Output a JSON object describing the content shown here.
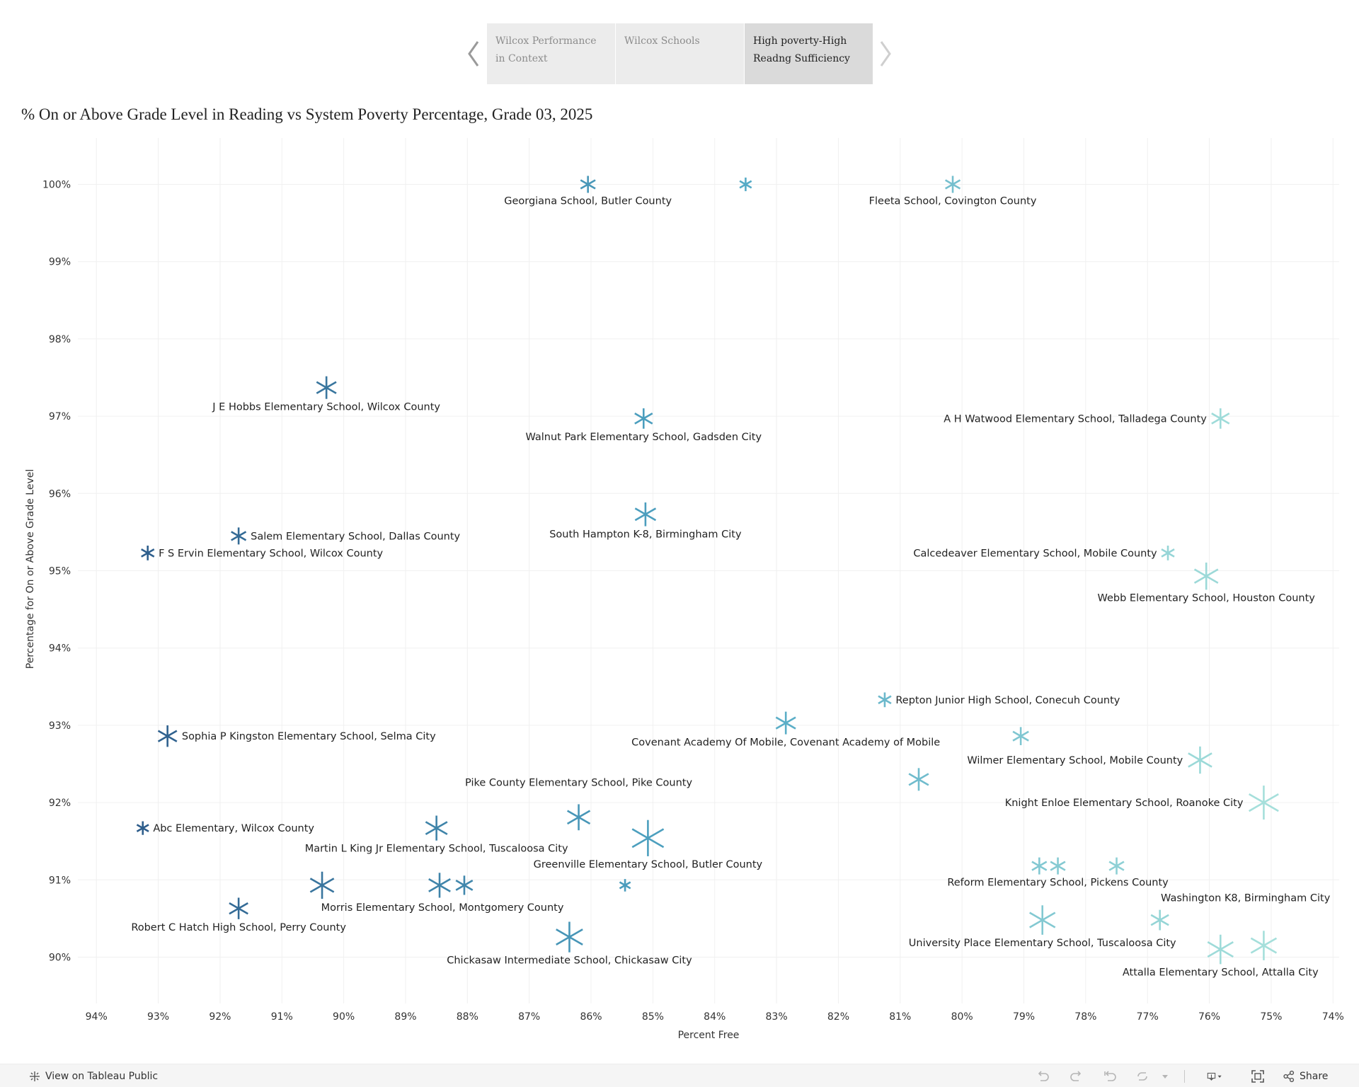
{
  "story": {
    "points": [
      {
        "label": "Wilcox Performance in Context",
        "active": false
      },
      {
        "label": "Wilcox Schools",
        "active": false
      },
      {
        "label": "High poverty-High Readng Sufficiency",
        "active": true
      }
    ]
  },
  "chart_data": {
    "type": "scatter",
    "title": "% On or Above Grade Level in Reading vs System Poverty Percentage, Grade 03, 2025",
    "xlabel": "Percent Free",
    "ylabel": "Percentage for On or Above Grade Level",
    "xlim": [
      94.3,
      73.9
    ],
    "ylim": [
      89.4,
      100.6
    ],
    "x_ticks": [
      94,
      93,
      92,
      91,
      90,
      89,
      88,
      87,
      86,
      85,
      84,
      83,
      82,
      81,
      80,
      79,
      78,
      77,
      76,
      75,
      74
    ],
    "y_ticks": [
      90,
      91,
      92,
      93,
      94,
      95,
      96,
      97,
      98,
      99,
      100
    ],
    "tick_suffix": "%",
    "marker": "asterisk",
    "color_scale": [
      "#2e5e8c",
      "#4fa6c4",
      "#a6e0db"
    ],
    "points": [
      {
        "x": 86.05,
        "y": 100.0,
        "size": 1.5,
        "label": "Georgiana School, Butler County",
        "label_pos": "below"
      },
      {
        "x": 83.5,
        "y": 100.0,
        "size": 1.2,
        "label": "",
        "label_pos": "none"
      },
      {
        "x": 80.15,
        "y": 100.0,
        "size": 1.5,
        "label": "Fleeta School, Covington County",
        "label_pos": "below"
      },
      {
        "x": 90.28,
        "y": 97.37,
        "size": 2.0,
        "label": "J E Hobbs Elementary School, Wilcox County",
        "label_pos": "below"
      },
      {
        "x": 85.15,
        "y": 96.97,
        "size": 1.8,
        "label": "Walnut Park Elementary School, Gadsden City",
        "label_pos": "below"
      },
      {
        "x": 75.82,
        "y": 96.97,
        "size": 1.8,
        "label": "A H Watwood Elementary School, Talladega County",
        "label_pos": "left"
      },
      {
        "x": 85.12,
        "y": 95.73,
        "size": 2.1,
        "label": "South Hampton K-8, Birmingham City",
        "label_pos": "below"
      },
      {
        "x": 91.7,
        "y": 95.45,
        "size": 1.5,
        "label": "Salem Elementary School, Dallas County",
        "label_pos": "right"
      },
      {
        "x": 93.17,
        "y": 95.23,
        "size": 1.3,
        "label": "F S Ervin Elementary School, Wilcox County",
        "label_pos": "right"
      },
      {
        "x": 76.67,
        "y": 95.23,
        "size": 1.3,
        "label": "Calcedeaver Elementary School, Mobile County",
        "label_pos": "left"
      },
      {
        "x": 76.05,
        "y": 94.93,
        "size": 2.4,
        "label": "Webb Elementary School, Houston County",
        "label_pos": "below"
      },
      {
        "x": 81.25,
        "y": 93.33,
        "size": 1.3,
        "label": "Repton Junior High School, Conecuh County",
        "label_pos": "right"
      },
      {
        "x": 82.85,
        "y": 93.03,
        "size": 2.0,
        "label": "Covenant Academy Of Mobile, Covenant Academy of Mobile",
        "label_pos": "below"
      },
      {
        "x": 92.85,
        "y": 92.86,
        "size": 1.9,
        "label": "Sophia P Kingston Elementary School, Selma City",
        "label_pos": "right"
      },
      {
        "x": 79.05,
        "y": 92.86,
        "size": 1.6,
        "label": "",
        "label_pos": "none"
      },
      {
        "x": 76.15,
        "y": 92.55,
        "size": 2.4,
        "label": "Wilmer Elementary School, Mobile County",
        "label_pos": "left"
      },
      {
        "x": 80.7,
        "y": 92.3,
        "size": 2.0,
        "label": "",
        "label_pos": "none"
      },
      {
        "x": 75.12,
        "y": 92.0,
        "size": 3.0,
        "label": "Knight Enloe Elementary School, Roanoke City",
        "label_pos": "left"
      },
      {
        "x": 86.2,
        "y": 91.81,
        "size": 2.3,
        "label": "Pike County Elementary School, Pike County",
        "label_pos": "above"
      },
      {
        "x": 88.5,
        "y": 91.67,
        "size": 2.2,
        "label": "Martin L King Jr Elementary School, Tuscaloosa City",
        "label_pos": "below"
      },
      {
        "x": 93.25,
        "y": 91.67,
        "size": 1.2,
        "label": "Abc Elementary, Wilcox County",
        "label_pos": "right"
      },
      {
        "x": 85.08,
        "y": 91.54,
        "size": 3.2,
        "label": "Greenville Elementary School, Butler County",
        "label_pos": "below"
      },
      {
        "x": 78.75,
        "y": 91.18,
        "size": 1.5,
        "label": "",
        "label_pos": "none"
      },
      {
        "x": 78.45,
        "y": 91.18,
        "size": 1.5,
        "label": "Reform Elementary School, Pickens County",
        "label_pos": "below"
      },
      {
        "x": 77.5,
        "y": 91.18,
        "size": 1.5,
        "label": "",
        "label_pos": "none"
      },
      {
        "x": 90.35,
        "y": 90.93,
        "size": 2.4,
        "label": "Morris Elementary School, Montgomery County",
        "label_pos": "below-right"
      },
      {
        "x": 88.45,
        "y": 90.93,
        "size": 2.2,
        "label": "",
        "label_pos": "none"
      },
      {
        "x": 88.05,
        "y": 90.93,
        "size": 1.7,
        "label": "",
        "label_pos": "none"
      },
      {
        "x": 85.45,
        "y": 90.93,
        "size": 1.1,
        "label": "",
        "label_pos": "none"
      },
      {
        "x": 91.7,
        "y": 90.63,
        "size": 1.9,
        "label": "Robert C Hatch High School, Perry County",
        "label_pos": "below"
      },
      {
        "x": 76.8,
        "y": 90.48,
        "size": 1.8,
        "label": "Washington K8, Birmingham City",
        "label_pos": "above-right"
      },
      {
        "x": 78.7,
        "y": 90.48,
        "size": 2.6,
        "label": "University Place Elementary School, Tuscaloosa City",
        "label_pos": "below"
      },
      {
        "x": 86.35,
        "y": 90.26,
        "size": 2.7,
        "label": "Chickasaw Intermediate School, Chickasaw City",
        "label_pos": "below"
      },
      {
        "x": 75.82,
        "y": 90.1,
        "size": 2.6,
        "label": "Attalla Elementary School, Attalla City",
        "label_pos": "below"
      },
      {
        "x": 75.12,
        "y": 90.15,
        "size": 2.6,
        "label": "",
        "label_pos": "none"
      }
    ]
  },
  "toolbar": {
    "view_label": "View on Tableau Public",
    "share_label": "Share",
    "icons": [
      "undo-icon",
      "redo-icon",
      "revert-icon",
      "refresh-icon",
      "download-icon",
      "fullscreen-icon",
      "share-icon"
    ]
  }
}
